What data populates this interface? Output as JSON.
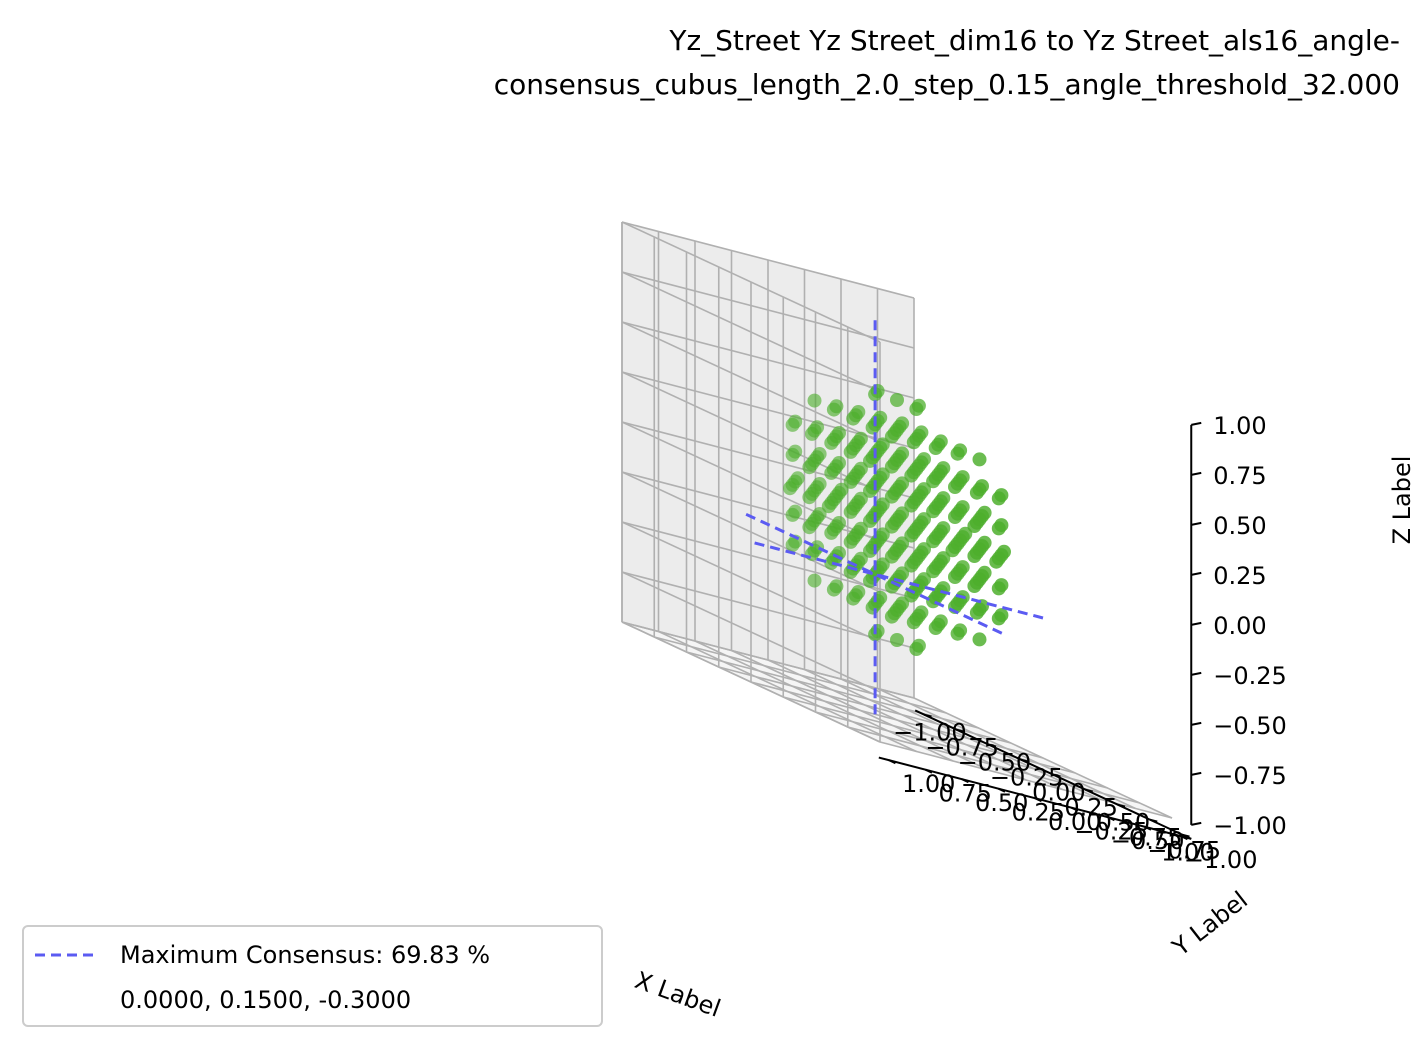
{
  "chart_data": {
    "type": "scatter",
    "projection": "3d",
    "title_line1": "Yz_Street Yz Street_dim16 to Yz Street_als16_angle-",
    "title_line2": "consensus_cubus_length_2.0_step_0.15_angle_threshold_32.000",
    "xlabel": "X Label",
    "ylabel": "Y Label",
    "zlabel": "Z Label",
    "xlim": [
      -1.0,
      1.0
    ],
    "ylim": [
      -1.0,
      1.0
    ],
    "zlim": [
      -1.0,
      1.0
    ],
    "xticks": [
      "−1.00",
      "−0.75",
      "−0.50",
      "−0.25",
      "0.00",
      "0.25",
      "0.50",
      "0.75",
      "1.00"
    ],
    "yticks": [
      "−1.00",
      "−0.75",
      "−0.50",
      "−0.25",
      "0.00",
      "0.25",
      "0.50",
      "0.75",
      "1.00"
    ],
    "zticks": [
      "−1.00",
      "−0.75",
      "−0.50",
      "−0.25",
      "0.00",
      "0.25",
      "0.50",
      "0.75",
      "1.00"
    ],
    "grid": true,
    "point_color": "#4daf2d",
    "line_color": "#5b5bf2",
    "grid_points": {
      "step": 0.15,
      "extent": 0.6,
      "description": "cubic lattice of points, all points with distance from origin <= 0.9"
    },
    "max_consensus_point": [
      0.0,
      0.15,
      -0.3
    ],
    "legend": {
      "location": "lower-left",
      "entry_label": "Maximum Consensus: 69.83 %",
      "entry_coords": "0.0000, 0.1500, -0.3000"
    }
  }
}
